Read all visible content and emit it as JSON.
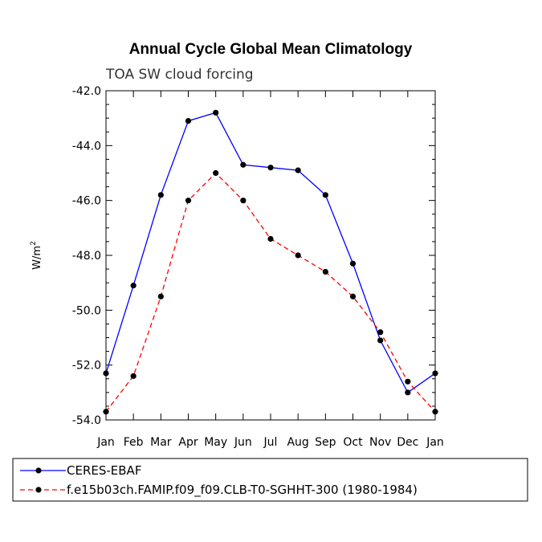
{
  "chart_data": {
    "type": "line",
    "title": "Annual Cycle Global Mean Climatology",
    "subtitle": "TOA SW cloud forcing",
    "ylabel": "W/m",
    "ylabel_sup": "2",
    "xlabel": "",
    "ylim": [
      -54.0,
      -42.0
    ],
    "yticks": [
      "-42.0",
      "-44.0",
      "-46.0",
      "-48.0",
      "-50.0",
      "-52.0",
      "-54.0"
    ],
    "ytick_values": [
      -42,
      -44,
      -46,
      -48,
      -50,
      -52,
      -54
    ],
    "categories": [
      "Jan",
      "Feb",
      "Mar",
      "Apr",
      "May",
      "Jun",
      "Jul",
      "Aug",
      "Sep",
      "Oct",
      "Nov",
      "Dec",
      "Jan"
    ],
    "series": [
      {
        "name": "CERES-EBAF",
        "color": "#0000ff",
        "dash": "solid",
        "values": [
          -52.3,
          -49.1,
          -45.8,
          -43.1,
          -42.8,
          -44.7,
          -44.8,
          -44.9,
          -45.8,
          -48.3,
          -51.1,
          -53.0,
          -52.3
        ]
      },
      {
        "name": "f.e15b03ch.FAMIP.f09_f09.CLB-T0-SGHHT-300 (1980-1984)",
        "color": "#ff0000",
        "dash": "dashed",
        "values": [
          -53.7,
          -52.4,
          -49.5,
          -46.0,
          -45.0,
          -46.0,
          -47.4,
          -48.0,
          -48.6,
          -49.5,
          -50.8,
          -52.6,
          -53.7
        ]
      }
    ],
    "legend_position": "bottom-left"
  }
}
